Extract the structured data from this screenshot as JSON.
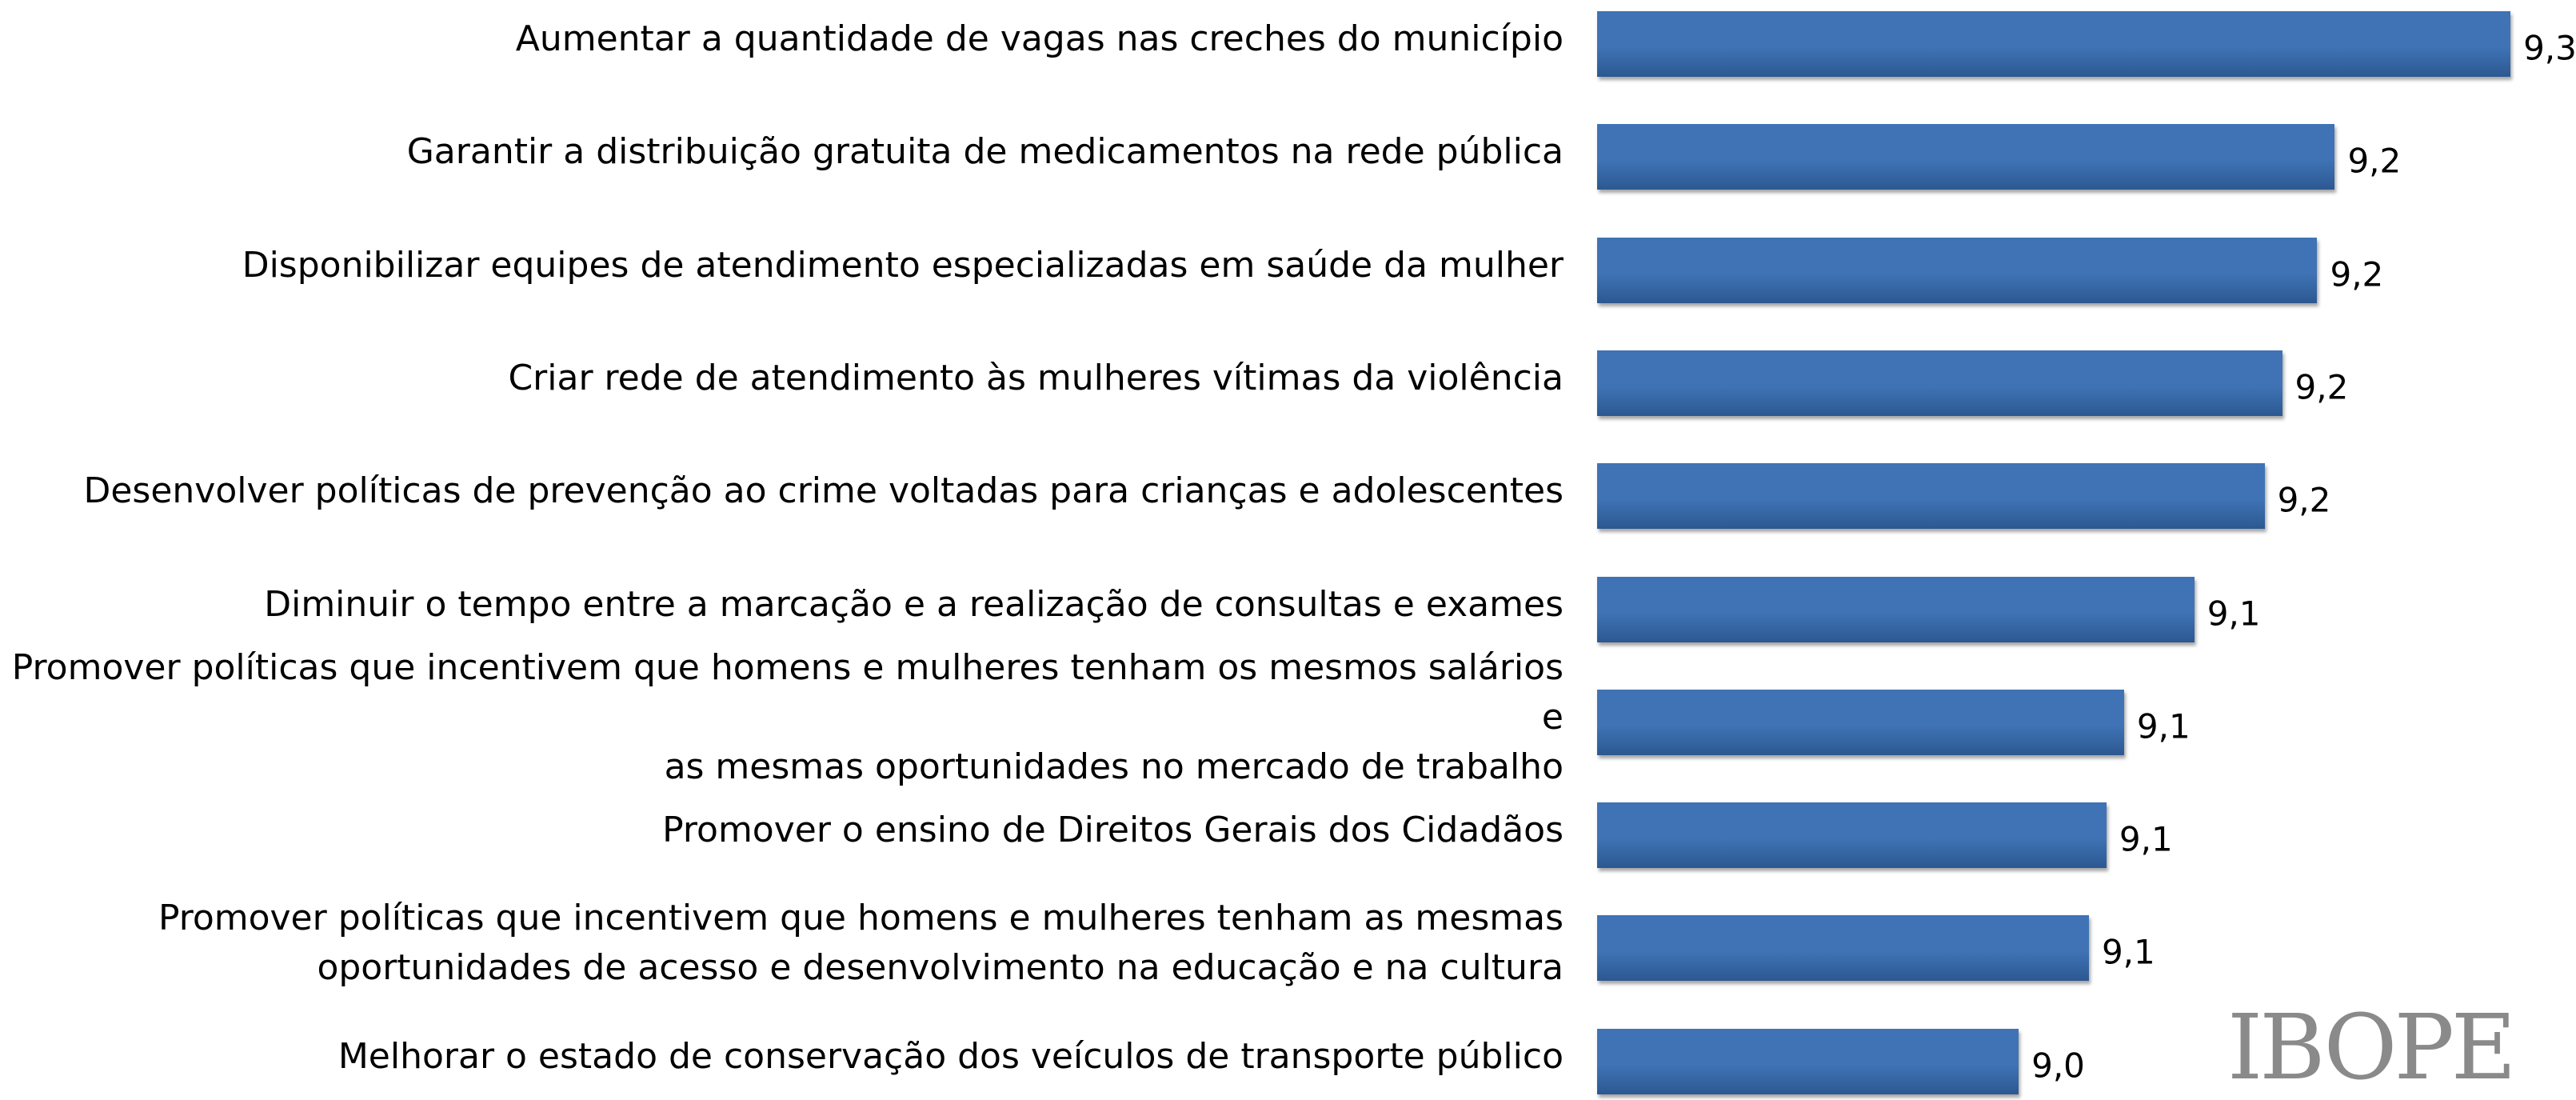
{
  "chart_data": {
    "type": "bar",
    "orientation": "horizontal",
    "categories": [
      "Aumentar a quantidade de vagas nas creches do município",
      "Garantir a distribuição gratuita de medicamentos na rede pública",
      "Disponibilizar equipes de atendimento especializadas em saúde da mulher",
      "Criar rede de atendimento às mulheres vítimas da violência",
      "Desenvolver políticas de prevenção ao crime voltadas para crianças e adolescentes",
      "Diminuir o tempo entre a marcação e a realização de consultas e exames",
      "Promover políticas que incentivem que homens e mulheres tenham os mesmos salários e\nas mesmas oportunidades no mercado de trabalho",
      "Promover o ensino de Direitos Gerais dos Cidadãos",
      "Promover políticas que incentivem que homens e mulheres tenham as mesmas\noportunidades de acesso e desenvolvimento na educação e na cultura",
      "Melhorar o estado de conservação dos veículos de transporte público"
    ],
    "values": [
      9.3,
      9.2,
      9.19,
      9.17,
      9.16,
      9.12,
      9.08,
      9.07,
      9.06,
      9.02
    ],
    "value_labels": [
      "9,3",
      "9,2",
      "9,2",
      "9,2",
      "9,2",
      "9,1",
      "9,1",
      "9,1",
      "9,1",
      "9,0"
    ],
    "color": "#3f73b5",
    "xlim": [
      8.78,
      9.32
    ]
  },
  "logo": "IBOPE"
}
